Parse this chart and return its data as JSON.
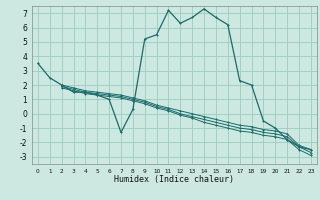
{
  "title": "",
  "xlabel": "Humidex (Indice chaleur)",
  "bg_color": "#cce8e0",
  "line_color": "#1a6b6b",
  "grid_color": "#99ccc0",
  "xlim": [
    -0.5,
    23.5
  ],
  "ylim": [
    -3.5,
    7.5
  ],
  "xticks": [
    0,
    1,
    2,
    3,
    4,
    5,
    6,
    7,
    8,
    9,
    10,
    11,
    12,
    13,
    14,
    15,
    16,
    17,
    18,
    19,
    20,
    21,
    22,
    23
  ],
  "yticks": [
    -3,
    -2,
    -1,
    0,
    1,
    2,
    3,
    4,
    5,
    6,
    7
  ],
  "lines": [
    {
      "x": [
        0,
        1,
        2,
        3,
        4,
        5,
        6,
        7,
        8,
        9,
        10,
        11,
        12,
        13,
        14,
        15,
        16,
        17,
        18,
        19,
        20,
        21,
        22,
        23
      ],
      "y": [
        3.5,
        2.5,
        2.0,
        1.5,
        1.5,
        1.3,
        1.0,
        -1.3,
        0.3,
        5.2,
        5.5,
        7.2,
        6.3,
        6.7,
        7.3,
        6.7,
        6.2,
        2.3,
        2.0,
        -0.5,
        -1.0,
        -1.8,
        -2.3,
        -2.5
      ]
    },
    {
      "x": [
        2,
        3,
        4,
        5,
        6,
        7,
        8,
        9,
        10,
        11,
        12,
        13,
        14,
        15,
        16,
        17,
        18,
        19,
        20,
        21,
        22,
        23
      ],
      "y": [
        2.0,
        1.8,
        1.6,
        1.5,
        1.4,
        1.3,
        1.1,
        0.9,
        0.6,
        0.4,
        0.2,
        -0.0,
        -0.2,
        -0.4,
        -0.6,
        -0.8,
        -0.9,
        -1.1,
        -1.2,
        -1.4,
        -2.2,
        -2.5
      ]
    },
    {
      "x": [
        2,
        3,
        4,
        5,
        6,
        7,
        8,
        9,
        10,
        11,
        12,
        13,
        14,
        15,
        16,
        17,
        18,
        19,
        20,
        21,
        22,
        23
      ],
      "y": [
        1.9,
        1.7,
        1.5,
        1.4,
        1.3,
        1.2,
        1.0,
        0.8,
        0.5,
        0.3,
        0.0,
        -0.2,
        -0.4,
        -0.6,
        -0.8,
        -1.0,
        -1.1,
        -1.3,
        -1.4,
        -1.6,
        -2.3,
        -2.7
      ]
    },
    {
      "x": [
        2,
        3,
        4,
        5,
        6,
        7,
        8,
        9,
        10,
        11,
        12,
        13,
        14,
        15,
        16,
        17,
        18,
        19,
        20,
        21,
        22,
        23
      ],
      "y": [
        1.8,
        1.6,
        1.4,
        1.3,
        1.2,
        1.1,
        0.9,
        0.7,
        0.4,
        0.2,
        -0.1,
        -0.3,
        -0.6,
        -0.8,
        -1.0,
        -1.2,
        -1.3,
        -1.5,
        -1.6,
        -1.8,
        -2.5,
        -2.9
      ]
    }
  ]
}
